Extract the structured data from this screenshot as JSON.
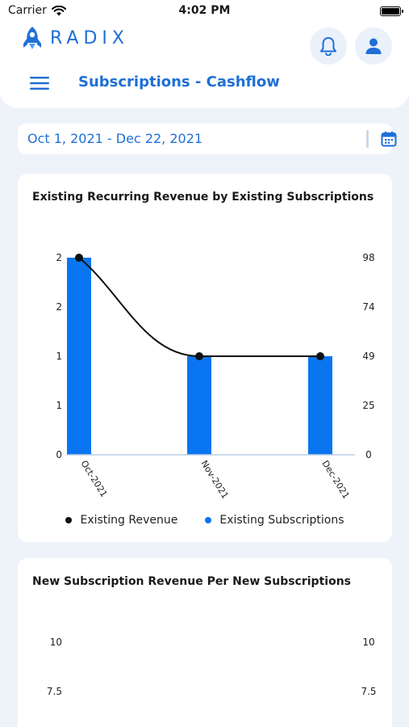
{
  "status_bar": {
    "carrier": "Carrier",
    "time": "4:02 PM"
  },
  "header": {
    "logo_text": "RADIX",
    "page_title": "Subscriptions - Cashflow"
  },
  "date_filter": {
    "value": "Oct 1, 2021 - Dec 22, 2021"
  },
  "colors": {
    "accent": "#1f6fd6",
    "bar": "#0a75f0",
    "line": "#111111"
  },
  "icons": {
    "menu": "hamburger-icon",
    "bell": "bell-icon",
    "user": "user-icon",
    "calendar": "calendar-icon",
    "wifi": "wifi-icon",
    "battery": "battery-icon"
  },
  "chart_data": [
    {
      "type": "bar",
      "title": "Existing Recurring Revenue by Existing Subscriptions",
      "categories": [
        "Oct-2021",
        "Nov-2021",
        "Dec-2021"
      ],
      "left_axis_ticks": [
        "0",
        "1",
        "1",
        "2",
        "2"
      ],
      "right_axis_ticks": [
        "0",
        "25",
        "49",
        "74",
        "98"
      ],
      "left_ylim": [
        0,
        2
      ],
      "right_ylim": [
        0,
        98
      ],
      "series": [
        {
          "name": "Existing Revenue",
          "type": "line",
          "axis": "right",
          "values": [
            98,
            49,
            49
          ]
        },
        {
          "name": "Existing Subscriptions",
          "type": "bar",
          "axis": "left",
          "values": [
            2,
            1,
            1
          ]
        }
      ],
      "legend": "bottom"
    },
    {
      "type": "bar",
      "title": "New Subscription Revenue Per New Subscriptions",
      "left_axis_ticks_visible": [
        "10",
        "7.5"
      ],
      "right_axis_ticks_visible": [
        "10",
        "7.5"
      ]
    }
  ]
}
